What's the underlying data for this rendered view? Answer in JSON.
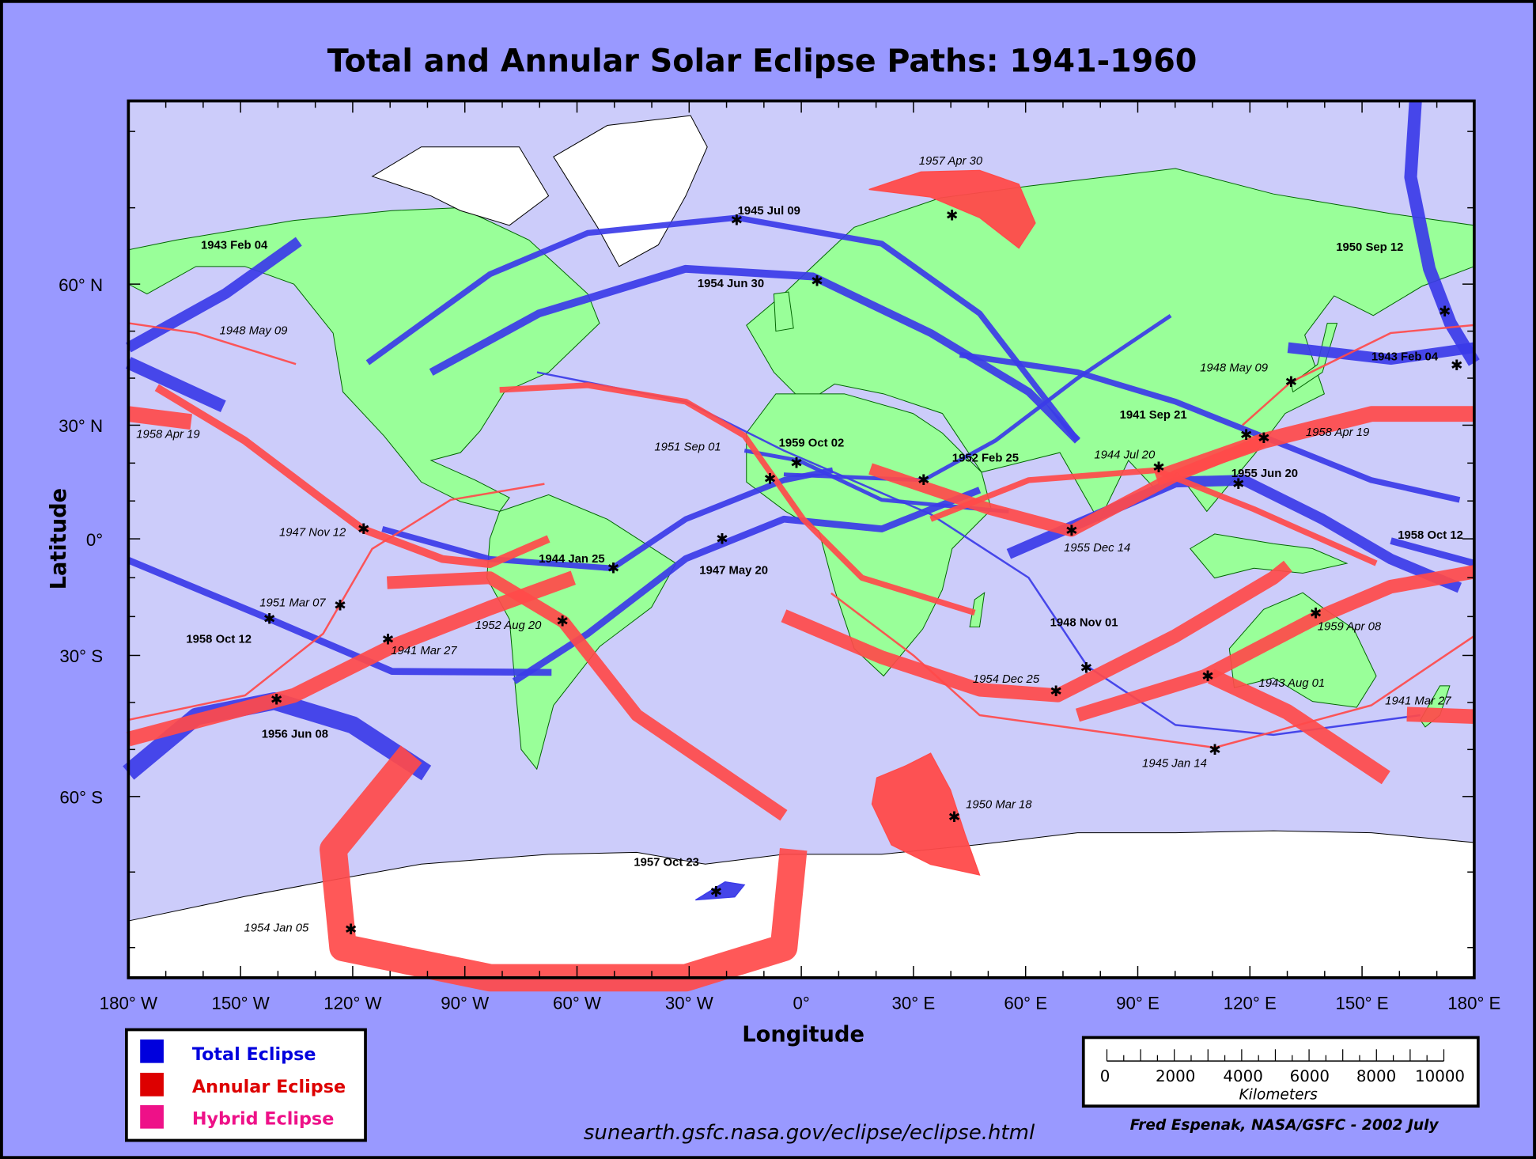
{
  "title": "Total and Annular Solar Eclipse Paths:  1941-1960",
  "axes": {
    "xlabel": "Longitude",
    "ylabel": "Latitude",
    "lon_ticks": [
      {
        "lon": -180,
        "label": "180° W"
      },
      {
        "lon": -150,
        "label": "150° W"
      },
      {
        "lon": -120,
        "label": "120° W"
      },
      {
        "lon": -90,
        "label": "90° W"
      },
      {
        "lon": -60,
        "label": "60° W"
      },
      {
        "lon": -30,
        "label": "30° W"
      },
      {
        "lon": 0,
        "label": "0°"
      },
      {
        "lon": 30,
        "label": "30° E"
      },
      {
        "lon": 60,
        "label": "60° E"
      },
      {
        "lon": 90,
        "label": "90° E"
      },
      {
        "lon": 120,
        "label": "120° E"
      },
      {
        "lon": 150,
        "label": "150° E"
      },
      {
        "lon": 180,
        "label": "180° E"
      }
    ],
    "lat_ticks": [
      {
        "lat": 60,
        "label": "60° N"
      },
      {
        "lat": 30,
        "label": "30° N"
      },
      {
        "lat": 0,
        "label": "0°"
      },
      {
        "lat": -30,
        "label": "30° S"
      },
      {
        "lat": -60,
        "label": "60° S"
      }
    ]
  },
  "colors": {
    "total": "#3b3be8",
    "annular": "#ff4a4a",
    "hybrid": "#ee1188",
    "land": "#99ff99",
    "ocean": "#ccccfa",
    "ice": "#ffffff",
    "frame": "#9999ff"
  },
  "legend": [
    {
      "label": "Total Eclipse",
      "color": "#0000dd"
    },
    {
      "label": "Annular Eclipse",
      "color": "#dd0000"
    },
    {
      "label": "Hybrid Eclipse",
      "color": "#ee1188"
    }
  ],
  "scale_bar": {
    "ticks": [
      "0",
      "2000",
      "4000",
      "6000",
      "8000",
      "10000"
    ],
    "unit": "Kilometers"
  },
  "footer": {
    "url": "sunearth.gsfc.nasa.gov/eclipse/eclipse.html",
    "credit": "Fred Espenak, NASA/GSFC - 2002 July"
  },
  "eclipses": [
    {
      "date": "1943 Feb 04",
      "type": "total",
      "greatest": [
        175.3,
        42.7
      ],
      "segments": [
        [
          [
            -180,
            46.5
          ],
          [
            -154,
            58
          ],
          [
            -134.4,
            65.6
          ]
        ],
        [
          [
            130.2,
            46.5
          ],
          [
            157.7,
            44
          ],
          [
            180,
            46.5
          ]
        ]
      ]
    },
    {
      "date": "1950 Sep 12",
      "type": "total",
      "greatest": [
        172.1,
        54.2
      ],
      "segments": [
        [
          [
            164.3,
            84
          ],
          [
            163,
            74
          ],
          [
            168,
            62
          ],
          [
            173.6,
            51.7
          ],
          [
            180,
            43.3
          ]
        ],
        [
          [
            -180,
            43.3
          ],
          [
            -154.6,
            34
          ]
        ]
      ]
    },
    {
      "date": "1945 Jul 09",
      "type": "total",
      "greatest": [
        -17.3,
        68.4
      ],
      "segments": [
        [
          [
            -116,
            43.3
          ],
          [
            -83.3,
            61.3
          ],
          [
            -57.1,
            66.7
          ],
          [
            -17.3,
            68.7
          ],
          [
            21.5,
            65.3
          ],
          [
            47.7,
            53.75
          ],
          [
            73.9,
            25.9
          ]
        ]
      ]
    },
    {
      "date": "1954 Jun 30",
      "type": "total",
      "greatest": [
        4.2,
        60.4
      ],
      "segments": [
        [
          [
            -99,
            41.25
          ],
          [
            -70.2,
            53.75
          ],
          [
            -31,
            62
          ],
          [
            3.1,
            61
          ],
          [
            34.6,
            49.6
          ],
          [
            60.8,
            37.1
          ],
          [
            73.9,
            25.9
          ]
        ]
      ]
    },
    {
      "date": "1941 Sep 21",
      "type": "total",
      "greatest": [
        119,
        27.4
      ],
      "segments": [
        [
          [
            42.4,
            45
          ],
          [
            73.9,
            41.25
          ],
          [
            100.1,
            35
          ],
          [
            126.3,
            25.9
          ],
          [
            152.5,
            15.5
          ],
          [
            176.1,
            10.3
          ]
        ]
      ]
    },
    {
      "date": "1948 Nov 01",
      "type": "total",
      "greatest": [
        76.2,
        -32.7
      ],
      "segments": [
        [
          [
            -70.7,
            41.25
          ],
          [
            -30.9,
            35
          ],
          [
            -4.7,
            23.3
          ],
          [
            34.6,
            6.5
          ],
          [
            60.8,
            -10
          ],
          [
            76.5,
            -32.3
          ],
          [
            100.1,
            -44.8
          ],
          [
            126.3,
            -46.9
          ],
          [
            165.6,
            -42.7
          ]
        ]
      ]
    },
    {
      "date": "1944 Jan 25",
      "type": "total",
      "greatest": [
        -50.3,
        -7.6
      ],
      "segments": [
        [
          [
            -112.1,
            2.6
          ],
          [
            -83.3,
            -5.2
          ],
          [
            -50.6,
            -7.6
          ],
          [
            -30.9,
            5.2
          ],
          [
            -4.7,
            15.5
          ],
          [
            8.4,
            18.1
          ]
        ]
      ]
    },
    {
      "date": "1947 May 20",
      "type": "total",
      "greatest": [
        -21.2,
        0
      ],
      "segments": [
        [
          [
            -76.8,
            -35.5
          ],
          [
            -57.1,
            -24.4
          ],
          [
            -30.9,
            -5.1
          ],
          [
            -4.7,
            5.2
          ],
          [
            21.5,
            2.6
          ],
          [
            47.7,
            12.9
          ]
        ]
      ]
    },
    {
      "date": "1958 Oct 12",
      "type": "total",
      "greatest": [
        -142.3,
        -20.6
      ],
      "segments": [
        [
          [
            -180,
            -5.5
          ],
          [
            -142.3,
            -20.6
          ],
          [
            -109.5,
            -33.4
          ],
          [
            -66.8,
            -33.6
          ]
        ],
        [
          [
            157.7,
            -0.5
          ],
          [
            180,
            -6.3
          ]
        ]
      ]
    },
    {
      "date": "1955 Jun 20",
      "type": "total",
      "greatest": [
        116.9,
        14.5
      ],
      "segments": [
        [
          [
            55.5,
            -3.9
          ],
          [
            73.9,
            3.9
          ],
          [
            100.1,
            15
          ],
          [
            118.4,
            15.5
          ],
          [
            139.4,
            5.2
          ],
          [
            157.7,
            -5.2
          ],
          [
            176.1,
            -12.6
          ]
        ]
      ]
    },
    {
      "date": "1956 Jun 08",
      "type": "total",
      "greatest": [
        -140.4,
        -39.4
      ],
      "segments": [
        [
          [
            -180,
            -55
          ],
          [
            -161.9,
            -43
          ],
          [
            -141,
            -39.7
          ],
          [
            -120,
            -44.8
          ],
          [
            -100.3,
            -55
          ]
        ]
      ]
    },
    {
      "date": "1957 Oct 23",
      "type": "total",
      "greatest": [
        -22.8,
        -72.6
      ],
      "polygon": [
        [
          -28.3,
          -73.7
        ],
        [
          -20.4,
          -71.3
        ],
        [
          -15.2,
          -71.7
        ],
        [
          -17.8,
          -73.3
        ]
      ]
    },
    {
      "date": "1959 Oct 02",
      "type": "total",
      "greatest": [
        -1.3,
        20
      ],
      "segments": [
        [
          [
            -15.2,
            23.3
          ],
          [
            -0.7,
            20.7
          ],
          [
            21.5,
            10.3
          ],
          [
            55.5,
            7.2
          ]
        ]
      ]
    },
    {
      "date": "1952 Feb 25",
      "type": "total",
      "greatest": [
        32.7,
        15.5
      ],
      "segments": [
        [
          [
            -4.7,
            17
          ],
          [
            32.7,
            15.5
          ],
          [
            52,
            26
          ],
          [
            73.9,
            40
          ],
          [
            98.8,
            53.3
          ]
        ]
      ]
    },
    {
      "date": "1957 Apr 30",
      "type": "annular",
      "greatest": [
        40.3,
        69
      ],
      "polygon": [
        [
          18.1,
          72.4
        ],
        [
          32,
          74.7
        ],
        [
          47.7,
          74.9
        ],
        [
          58.2,
          73.1
        ],
        [
          62.6,
          68
        ],
        [
          58.2,
          64.7
        ],
        [
          47.7,
          68.7
        ],
        [
          34.6,
          71.4
        ]
      ]
    },
    {
      "date": "1948 May 09",
      "type": "annular",
      "greatest": [
        131,
        39.2
      ],
      "segments": [
        [
          [
            -180,
            51.7
          ],
          [
            -161.9,
            49.6
          ],
          [
            -135.2,
            43
          ]
        ],
        [
          [
            118,
            30
          ],
          [
            131,
            39.2
          ],
          [
            157.7,
            49.6
          ],
          [
            180,
            51.3
          ]
        ]
      ]
    },
    {
      "date": "1958 Apr 19",
      "type": "annular",
      "greatest": [
        123.7,
        26.6
      ],
      "segments": [
        [
          [
            -180,
            32.4
          ],
          [
            -163.2,
            30.7
          ]
        ],
        [
          [
            95,
            16
          ],
          [
            123.7,
            25.9
          ],
          [
            152.5,
            32.4
          ],
          [
            180,
            32.4
          ]
        ]
      ]
    },
    {
      "date": "1947 Nov 12",
      "type": "annular",
      "greatest": [
        -117.1,
        2.6
      ],
      "segments": [
        [
          [
            -172.4,
            38
          ],
          [
            -148.8,
            25.9
          ],
          [
            -127.9,
            10.3
          ],
          [
            -117.4,
            2.6
          ],
          [
            -96,
            -5.2
          ],
          [
            -83.3,
            -6.5
          ],
          [
            -67.6,
            0
          ]
        ]
      ]
    },
    {
      "date": "1951 Sep 01",
      "type": "annular",
      "greatest": [
        -8.4,
        15.8
      ],
      "segments": [
        [
          [
            -80.7,
            37.5
          ],
          [
            -57.1,
            38.5
          ],
          [
            -30.9,
            35
          ],
          [
            -15.2,
            27.2
          ],
          [
            0.5,
            5.2
          ],
          [
            16.2,
            -10
          ],
          [
            46.4,
            -19
          ]
        ]
      ]
    },
    {
      "date": "1951 Mar 07",
      "type": "annular",
      "greatest": [
        -123.4,
        -17.1
      ],
      "segments": [
        [
          [
            -180,
            -43.7
          ],
          [
            -148.8,
            -38.5
          ],
          [
            -127.9,
            -24.4
          ],
          [
            -114.8,
            -2.6
          ],
          [
            -93.8,
            10.3
          ],
          [
            -68.7,
            14.5
          ]
        ]
      ]
    },
    {
      "date": "1941 Mar 27",
      "type": "annular",
      "greatest": [
        -110.6,
        -25.9
      ],
      "segments": [
        [
          [
            -180,
            -47.8
          ],
          [
            -135.7,
            -38.5
          ],
          [
            -109.5,
            -27.7
          ],
          [
            -83.3,
            -17.8
          ],
          [
            -61,
            -10
          ]
        ],
        [
          [
            162,
            -42.5
          ],
          [
            180,
            -43
          ]
        ]
      ]
    },
    {
      "date": "1952 Aug 20",
      "type": "annular",
      "greatest": [
        -63.9,
        -21.2
      ],
      "segments": [
        [
          [
            -110.8,
            -11.3
          ],
          [
            -83.3,
            -10
          ],
          [
            -63.6,
            -21.4
          ],
          [
            -44,
            -42.7
          ],
          [
            -4.7,
            -62.5
          ]
        ]
      ]
    },
    {
      "date": "1950 Mar 18",
      "type": "annular",
      "greatest": [
        40.9,
        -62.7
      ],
      "polygon": [
        [
          34.6,
          -50.8
        ],
        [
          28.1,
          -53.4
        ],
        [
          20.2,
          -56
        ],
        [
          18.9,
          -61
        ],
        [
          24.1,
          -66.4
        ],
        [
          34.6,
          -69
        ],
        [
          47.7,
          -70.4
        ],
        [
          43.8,
          -65
        ],
        [
          39.9,
          -58.6
        ]
      ]
    },
    {
      "date": "1954 Jan 05",
      "type": "annular",
      "greatest": [
        -120.5,
        -77.6
      ],
      "segments": [
        [
          [
            -104.3,
            -51
          ],
          [
            -125.2,
            -67
          ],
          [
            -122.6,
            -80
          ],
          [
            -83.3,
            -84
          ],
          [
            -30.9,
            -84
          ],
          [
            -4.7,
            -80
          ],
          [
            -2.1,
            -67
          ]
        ]
      ]
    },
    {
      "date": "1954 Dec 25",
      "type": "annular",
      "greatest": [
        68.1,
        -37.6
      ],
      "segments": [
        [
          [
            -4.7,
            -19.8
          ],
          [
            21.5,
            -30.4
          ],
          [
            47.7,
            -37.3
          ],
          [
            68.6,
            -38.5
          ],
          [
            100,
            -25
          ],
          [
            126.3,
            -10
          ],
          [
            130.2,
            -7
          ]
        ]
      ]
    },
    {
      "date": "1945 Jan 14",
      "type": "annular",
      "greatest": [
        110.6,
        -50.1
      ],
      "segments": [
        [
          [
            8,
            -14
          ],
          [
            30,
            -30
          ],
          [
            47.7,
            -42.7
          ],
          [
            110.6,
            -49.6
          ],
          [
            152.5,
            -40.6
          ],
          [
            180,
            -25
          ]
        ]
      ]
    },
    {
      "date": "1955 Dec 14",
      "type": "annular",
      "greatest": [
        72.3,
        2.1
      ],
      "segments": [
        [
          [
            18.5,
            18.5
          ],
          [
            50,
            8
          ],
          [
            72.3,
            2.1
          ],
          [
            100.1,
            16.6
          ],
          [
            123.7,
            25.9
          ]
        ]
      ]
    },
    {
      "date": "1944 Jul 20",
      "type": "annular",
      "greatest": [
        95.6,
        18.9
      ],
      "segments": [
        [
          [
            34.6,
            5.2
          ],
          [
            60.8,
            15.5
          ],
          [
            94.9,
            18.1
          ],
          [
            121.1,
            7.8
          ],
          [
            153.8,
            -6.3
          ]
        ]
      ]
    },
    {
      "date": "1959 Apr 08",
      "type": "annular",
      "greatest": [
        137.6,
        -19.2
      ],
      "segments": [
        [
          [
            73.9,
            -42.7
          ],
          [
            107.9,
            -34.4
          ],
          [
            136.8,
            -20.8
          ],
          [
            157.7,
            -12.3
          ],
          [
            180,
            -8.5
          ]
        ]
      ]
    },
    {
      "date": "1943 Aug 01",
      "type": "annular",
      "greatest": [
        108.7,
        -34.4
      ],
      "segments": [
        [
          [
            109.6,
            -34.4
          ],
          [
            130,
            -42
          ],
          [
            156.4,
            -56
          ]
        ]
      ]
    }
  ]
}
